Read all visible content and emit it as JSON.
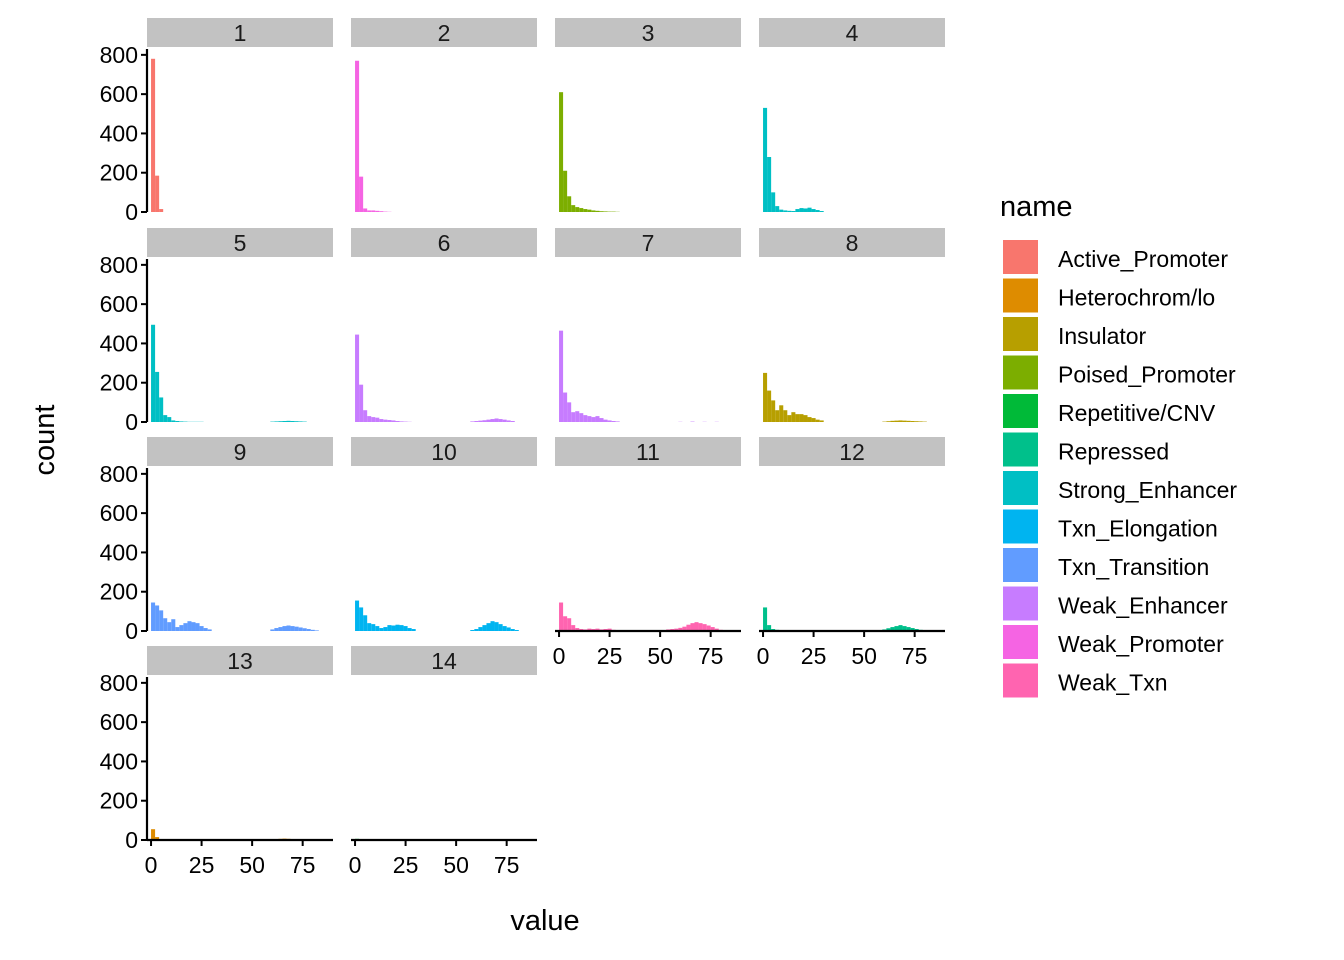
{
  "chart_data": {
    "type": "bar",
    "subtype": "faceted-histogram",
    "xlabel": "value",
    "ylabel": "count",
    "xlim": [
      -2,
      90
    ],
    "ylim": [
      0,
      840
    ],
    "x_ticks": [
      0,
      25,
      50,
      75
    ],
    "y_ticks": [
      0,
      200,
      400,
      600,
      800
    ],
    "binwidth": 2,
    "grid": false,
    "legend": {
      "title": "name",
      "placement": "right",
      "entries": [
        {
          "label": "Active_Promoter",
          "color": "#F8766D"
        },
        {
          "label": "Heterochrom/lo",
          "color": "#DE8C00"
        },
        {
          "label": "Insulator",
          "color": "#B79F00"
        },
        {
          "label": "Poised_Promoter",
          "color": "#7CAE00"
        },
        {
          "label": "Repetitive/CNV",
          "color": "#00BA38"
        },
        {
          "label": "Repressed",
          "color": "#00C08B"
        },
        {
          "label": "Strong_Enhancer",
          "color": "#00BFC4"
        },
        {
          "label": "Txn_Elongation",
          "color": "#00B4F0"
        },
        {
          "label": "Txn_Transition",
          "color": "#619CFF"
        },
        {
          "label": "Weak_Enhancer",
          "color": "#C77CFF"
        },
        {
          "label": "Weak_Promoter",
          "color": "#F564E3"
        },
        {
          "label": "Weak_Txn",
          "color": "#FF64B0"
        }
      ]
    },
    "panels": [
      {
        "label": "1",
        "series": "Active_Promoter",
        "bins": [
          [
            1,
            780
          ],
          [
            3,
            185
          ],
          [
            5,
            15
          ]
        ]
      },
      {
        "label": "2",
        "series": "Weak_Promoter",
        "bins": [
          [
            1,
            770
          ],
          [
            3,
            180
          ],
          [
            5,
            18
          ],
          [
            7,
            8
          ],
          [
            9,
            8
          ],
          [
            11,
            6
          ],
          [
            13,
            4
          ],
          [
            15,
            2
          ],
          [
            17,
            1
          ]
        ]
      },
      {
        "label": "3",
        "series": "Poised_Promoter",
        "bins": [
          [
            1,
            610
          ],
          [
            3,
            210
          ],
          [
            5,
            80
          ],
          [
            7,
            35
          ],
          [
            9,
            25
          ],
          [
            11,
            20
          ],
          [
            13,
            15
          ],
          [
            15,
            12
          ],
          [
            17,
            8
          ],
          [
            19,
            6
          ],
          [
            21,
            4
          ],
          [
            23,
            3
          ],
          [
            25,
            2
          ],
          [
            27,
            2
          ],
          [
            29,
            1
          ]
        ]
      },
      {
        "label": "4",
        "series": "Strong_Enhancer",
        "bins": [
          [
            1,
            530
          ],
          [
            3,
            280
          ],
          [
            5,
            100
          ],
          [
            7,
            30
          ],
          [
            9,
            12
          ],
          [
            11,
            8
          ],
          [
            13,
            6
          ],
          [
            15,
            5
          ],
          [
            17,
            15
          ],
          [
            19,
            20
          ],
          [
            21,
            18
          ],
          [
            23,
            22
          ],
          [
            25,
            15
          ],
          [
            27,
            10
          ],
          [
            29,
            5
          ]
        ]
      },
      {
        "label": "5",
        "series": "Strong_Enhancer",
        "bins": [
          [
            1,
            495
          ],
          [
            3,
            255
          ],
          [
            5,
            125
          ],
          [
            7,
            35
          ],
          [
            9,
            25
          ],
          [
            11,
            8
          ],
          [
            13,
            5
          ],
          [
            15,
            3
          ],
          [
            17,
            2
          ],
          [
            19,
            1
          ],
          [
            21,
            1
          ],
          [
            23,
            1
          ],
          [
            25,
            1
          ],
          [
            60,
            2
          ],
          [
            62,
            3
          ],
          [
            64,
            4
          ],
          [
            66,
            5
          ],
          [
            68,
            6
          ],
          [
            70,
            5
          ],
          [
            72,
            4
          ],
          [
            74,
            3
          ],
          [
            76,
            2
          ]
        ]
      },
      {
        "label": "6",
        "series": "Weak_Enhancer",
        "bins": [
          [
            1,
            445
          ],
          [
            3,
            190
          ],
          [
            5,
            60
          ],
          [
            7,
            30
          ],
          [
            9,
            25
          ],
          [
            11,
            22
          ],
          [
            13,
            15
          ],
          [
            15,
            12
          ],
          [
            17,
            10
          ],
          [
            19,
            8
          ],
          [
            21,
            5
          ],
          [
            23,
            3
          ],
          [
            25,
            2
          ],
          [
            27,
            1
          ],
          [
            58,
            3
          ],
          [
            60,
            5
          ],
          [
            62,
            7
          ],
          [
            64,
            9
          ],
          [
            66,
            12
          ],
          [
            68,
            15
          ],
          [
            70,
            18
          ],
          [
            72,
            15
          ],
          [
            74,
            12
          ],
          [
            76,
            8
          ],
          [
            78,
            5
          ]
        ]
      },
      {
        "label": "7",
        "series": "Weak_Enhancer",
        "bins": [
          [
            1,
            465
          ],
          [
            3,
            150
          ],
          [
            5,
            100
          ],
          [
            7,
            50
          ],
          [
            9,
            55
          ],
          [
            11,
            45
          ],
          [
            13,
            35
          ],
          [
            15,
            30
          ],
          [
            17,
            25
          ],
          [
            19,
            30
          ],
          [
            21,
            20
          ],
          [
            23,
            12
          ],
          [
            25,
            8
          ],
          [
            27,
            5
          ],
          [
            29,
            3
          ],
          [
            60,
            1
          ],
          [
            66,
            2
          ],
          [
            72,
            1
          ],
          [
            78,
            1
          ]
        ]
      },
      {
        "label": "8",
        "series": "Insulator",
        "bins": [
          [
            1,
            250
          ],
          [
            3,
            160
          ],
          [
            5,
            110
          ],
          [
            7,
            60
          ],
          [
            9,
            85
          ],
          [
            11,
            60
          ],
          [
            13,
            35
          ],
          [
            15,
            50
          ],
          [
            17,
            40
          ],
          [
            19,
            40
          ],
          [
            21,
            35
          ],
          [
            23,
            25
          ],
          [
            25,
            20
          ],
          [
            27,
            12
          ],
          [
            29,
            8
          ],
          [
            60,
            2
          ],
          [
            62,
            4
          ],
          [
            64,
            6
          ],
          [
            66,
            7
          ],
          [
            68,
            8
          ],
          [
            70,
            7
          ],
          [
            72,
            6
          ],
          [
            74,
            5
          ],
          [
            76,
            4
          ],
          [
            78,
            3
          ],
          [
            80,
            2
          ]
        ]
      },
      {
        "label": "9",
        "series": "Txn_Transition",
        "bins": [
          [
            1,
            145
          ],
          [
            3,
            130
          ],
          [
            5,
            105
          ],
          [
            7,
            65
          ],
          [
            9,
            45
          ],
          [
            11,
            60
          ],
          [
            13,
            20
          ],
          [
            15,
            30
          ],
          [
            17,
            40
          ],
          [
            19,
            50
          ],
          [
            21,
            45
          ],
          [
            23,
            40
          ],
          [
            25,
            25
          ],
          [
            27,
            15
          ],
          [
            29,
            8
          ],
          [
            60,
            8
          ],
          [
            62,
            15
          ],
          [
            64,
            20
          ],
          [
            66,
            25
          ],
          [
            68,
            28
          ],
          [
            70,
            25
          ],
          [
            72,
            22
          ],
          [
            74,
            18
          ],
          [
            76,
            14
          ],
          [
            78,
            10
          ],
          [
            80,
            6
          ],
          [
            82,
            3
          ]
        ]
      },
      {
        "label": "10",
        "series": "Txn_Elongation",
        "bins": [
          [
            1,
            155
          ],
          [
            3,
            120
          ],
          [
            5,
            80
          ],
          [
            7,
            40
          ],
          [
            9,
            35
          ],
          [
            11,
            25
          ],
          [
            13,
            15
          ],
          [
            15,
            20
          ],
          [
            17,
            30
          ],
          [
            19,
            28
          ],
          [
            21,
            32
          ],
          [
            23,
            30
          ],
          [
            25,
            25
          ],
          [
            27,
            15
          ],
          [
            29,
            10
          ],
          [
            58,
            5
          ],
          [
            60,
            10
          ],
          [
            62,
            20
          ],
          [
            64,
            30
          ],
          [
            66,
            40
          ],
          [
            68,
            50
          ],
          [
            70,
            45
          ],
          [
            72,
            35
          ],
          [
            74,
            25
          ],
          [
            76,
            18
          ],
          [
            78,
            10
          ],
          [
            80,
            5
          ]
        ]
      },
      {
        "label": "11",
        "series": "Weak_Txn",
        "bins": [
          [
            1,
            145
          ],
          [
            3,
            75
          ],
          [
            5,
            65
          ],
          [
            7,
            30
          ],
          [
            9,
            15
          ],
          [
            11,
            10
          ],
          [
            13,
            8
          ],
          [
            15,
            12
          ],
          [
            17,
            10
          ],
          [
            19,
            12
          ],
          [
            21,
            8
          ],
          [
            23,
            10
          ],
          [
            25,
            12
          ],
          [
            27,
            6
          ],
          [
            29,
            4
          ],
          [
            52,
            5
          ],
          [
            54,
            8
          ],
          [
            56,
            10
          ],
          [
            58,
            12
          ],
          [
            60,
            16
          ],
          [
            62,
            22
          ],
          [
            64,
            32
          ],
          [
            66,
            40
          ],
          [
            68,
            45
          ],
          [
            70,
            40
          ],
          [
            72,
            35
          ],
          [
            74,
            28
          ],
          [
            76,
            20
          ],
          [
            78,
            12
          ],
          [
            80,
            6
          ]
        ]
      },
      {
        "label": "12",
        "series": "Repressed",
        "bins": [
          [
            1,
            120
          ],
          [
            3,
            30
          ],
          [
            5,
            10
          ],
          [
            7,
            6
          ],
          [
            9,
            4
          ],
          [
            11,
            3
          ],
          [
            58,
            3
          ],
          [
            60,
            8
          ],
          [
            62,
            14
          ],
          [
            64,
            20
          ],
          [
            66,
            25
          ],
          [
            68,
            30
          ],
          [
            70,
            25
          ],
          [
            72,
            20
          ],
          [
            74,
            15
          ],
          [
            76,
            10
          ],
          [
            78,
            6
          ],
          [
            80,
            3
          ]
        ]
      },
      {
        "label": "13",
        "series": "Heterochrom/lo",
        "bins": [
          [
            1,
            55
          ],
          [
            3,
            15
          ],
          [
            5,
            5
          ],
          [
            60,
            3
          ],
          [
            62,
            5
          ],
          [
            64,
            6
          ],
          [
            66,
            7
          ],
          [
            68,
            6
          ],
          [
            70,
            5
          ],
          [
            72,
            4
          ],
          [
            74,
            3
          ],
          [
            76,
            2
          ],
          [
            78,
            1
          ]
        ]
      },
      {
        "label": "14",
        "series": "Repetitive/CNV",
        "bins": [
          [
            1,
            6
          ],
          [
            3,
            3
          ],
          [
            5,
            1
          ]
        ]
      }
    ]
  }
}
